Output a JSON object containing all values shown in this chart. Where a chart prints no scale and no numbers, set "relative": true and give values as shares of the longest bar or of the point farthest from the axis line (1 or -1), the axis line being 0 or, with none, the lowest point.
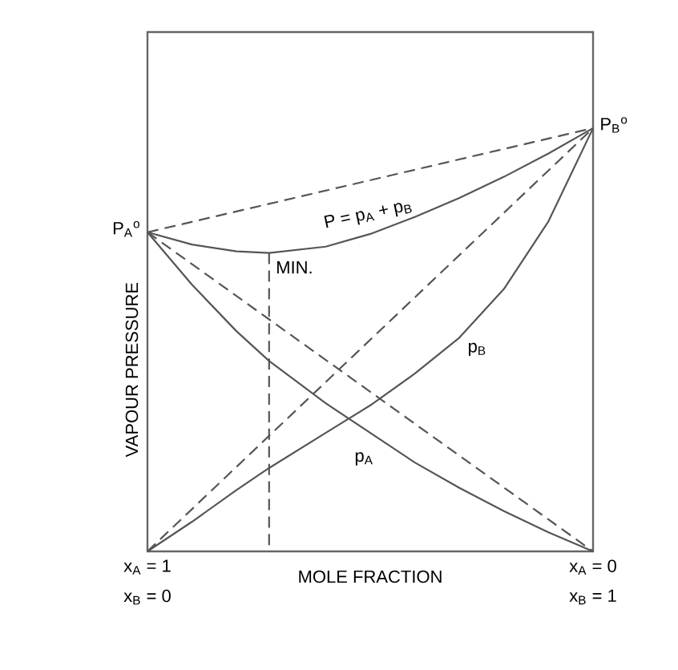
{
  "chart_data": {
    "type": "line",
    "relative": true,
    "xlabel": "MOLE FRACTION",
    "ylabel": "VAPOUR PRESSURE",
    "xlim": [
      0,
      1
    ],
    "xticks": [
      {
        "value": 0,
        "label": "x$_{B}$ = 0"
      },
      {
        "value": 1,
        "label": "x$_{B}$ = 1"
      }
    ],
    "tick_labels": "x",
    "marker": "none",
    "series": [
      {
        "color": "#555555",
        "line_style": "solid",
        "x": [
          0,
          0.1,
          0.2,
          0.273,
          0.4,
          0.5,
          0.6,
          0.7,
          0.8,
          0.9,
          1
        ],
        "values": [
          0.754,
          0.725,
          0.709,
          0.705,
          0.72,
          0.75,
          0.79,
          0.835,
          0.885,
          0.94,
          1
        ]
      },
      {
        "color": "#555555",
        "line_style": "solid",
        "x": [
          0,
          0.1,
          0.2,
          0.273,
          0.4,
          0.5,
          0.6,
          0.7,
          0.8,
          0.9,
          1
        ],
        "values": [
          0.754,
          0.63,
          0.52,
          0.45,
          0.35,
          0.28,
          0.21,
          0.15,
          0.095,
          0.045,
          0
        ]
      },
      {
        "color": "#555555",
        "line_style": "solid",
        "x": [
          0,
          0.1,
          0.2,
          0.273,
          0.4,
          0.5,
          0.6,
          0.7,
          0.8,
          0.9,
          1
        ],
        "values": [
          0,
          0.07,
          0.145,
          0.197,
          0.28,
          0.345,
          0.42,
          0.505,
          0.62,
          0.78,
          1
        ]
      },
      {
        "color": "#555555",
        "line_style": "dashed",
        "x": [
          0,
          1
        ],
        "values": [
          0.754,
          1
        ]
      },
      {
        "color": "#555555",
        "line_style": "dashed",
        "x": [
          0,
          1
        ],
        "values": [
          0.754,
          0
        ]
      },
      {
        "color": "#555555",
        "line_style": "dashed",
        "x": [
          0,
          1
        ],
        "values": [
          0,
          1
        ]
      },
      {
        "color": "#555555",
        "line_style": "dashed",
        "x": [
          0.273,
          0.273
        ],
        "values": [
          0.705,
          0
        ]
      }
    ],
    "annotations": [
      {
        "text": "P$_{A}$$^{o}$",
        "x": 0,
        "y": 0.754
      },
      {
        "text": "P$_{B}$$^{o}$",
        "x": 1,
        "y": 1
      },
      {
        "text": "P = p$_{A}$ + p$_{B}$",
        "x": 0.5,
        "y": 0.75
      },
      {
        "text": "MIN.",
        "x": 0.273,
        "y": 0.705
      },
      {
        "text": "p$_{B}$",
        "x": 0.7,
        "y": 0.505
      },
      {
        "text": "p$_{A}$",
        "x": 0.45,
        "y": 0.307
      },
      "x$_{A}$ = 1",
      "x$_{A}$ = 0"
    ]
  }
}
